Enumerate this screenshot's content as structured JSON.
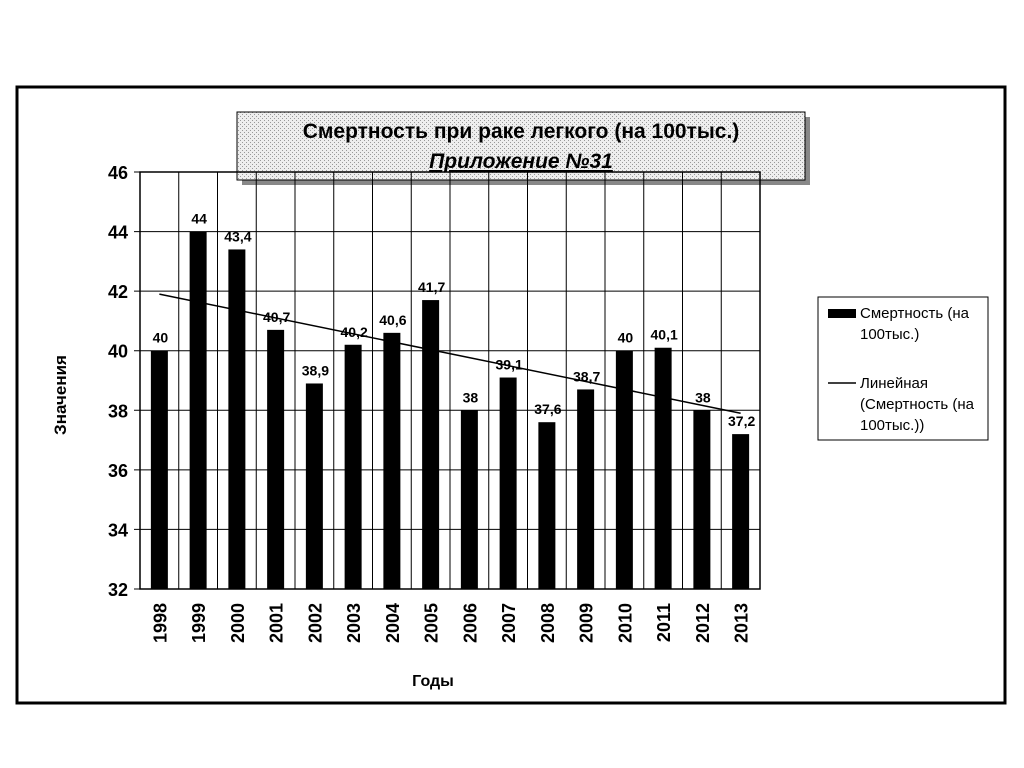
{
  "chart_data": {
    "type": "bar",
    "title": "Смертность при раке легкого (на 100тыс.)",
    "subtitle": "Приложение №31",
    "y_label": "Значения",
    "x_label": "Годы",
    "categories": [
      "1998",
      "1999",
      "2000",
      "2001",
      "2002",
      "2003",
      "2004",
      "2005",
      "2006",
      "2007",
      "2008",
      "2009",
      "2010",
      "2011",
      "2012",
      "2013"
    ],
    "series": [
      {
        "name": "Смертность (на 100тыс.)",
        "color": "#000000",
        "values": [
          40,
          44,
          43.4,
          40.7,
          38.9,
          40.2,
          40.6,
          41.7,
          38,
          39.1,
          37.6,
          38.7,
          40,
          40.1,
          38,
          37.2
        ],
        "value_labels": [
          "40",
          "44",
          "43,4",
          "40,7",
          "38,9",
          "40,2",
          "40,6",
          "41,7",
          "38",
          "39,1",
          "37,6",
          "38,7",
          "40",
          "40,1",
          "38",
          "37,2"
        ]
      }
    ],
    "trend": {
      "name": "Линейная (Смертность (на 100тыс.))",
      "color": "#000000",
      "x": [
        "1998",
        "2013"
      ],
      "values": [
        41.9,
        37.9
      ]
    },
    "ylim": [
      32,
      46
    ],
    "yticks": [
      32,
      34,
      36,
      38,
      40,
      42,
      44,
      46
    ],
    "grid": true,
    "legend": "right"
  }
}
